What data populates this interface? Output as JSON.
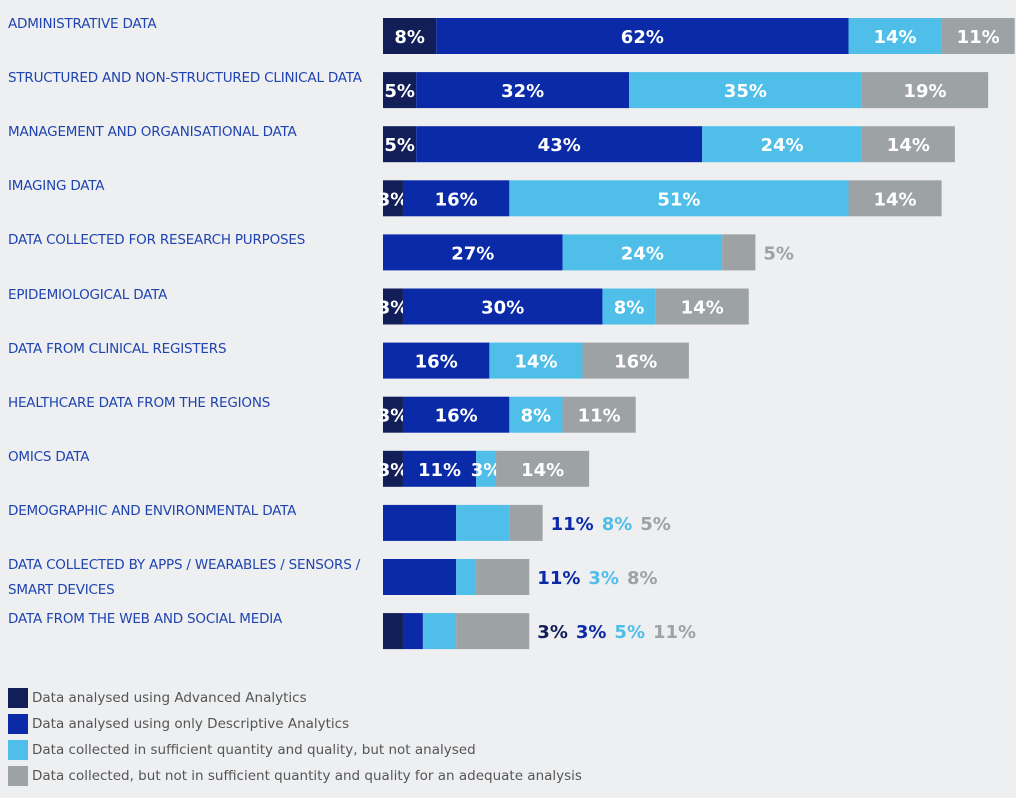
{
  "chart_data": {
    "type": "bar",
    "orientation": "horizontal",
    "stacked": true,
    "categories": [
      "ADMINISTRATIVE DATA",
      "STRUCTURED AND NON-STRUCTURED CLINICAL DATA",
      "MANAGEMENT AND ORGANISATIONAL DATA",
      "IMAGING DATA",
      "DATA COLLECTED FOR RESEARCH PURPOSES",
      "EPIDEMIOLOGICAL DATA",
      "DATA FROM CLINICAL REGISTERS",
      "HEALTHCARE DATA FROM THE REGIONS",
      "OMICS DATA",
      "DEMOGRAPHIC AND ENVIRONMENTAL DATA",
      "DATA COLLECTED BY APPS / WEARABLES / SENSORS / SMART DEVICES",
      "DATA FROM THE WEB AND SOCIAL MEDIA"
    ],
    "series": [
      {
        "name": "Data analysed using Advanced Analytics",
        "color": "#111e57",
        "values": [
          8,
          5,
          5,
          3,
          null,
          3,
          null,
          3,
          3,
          null,
          null,
          3
        ],
        "value_labels": [
          "8%",
          "5%",
          "5%",
          "3%",
          null,
          "3%",
          null,
          "3%",
          "3%",
          null,
          null,
          "3%"
        ]
      },
      {
        "name": "Data analysed using only Descriptive Analytics",
        "color": "#0a2aa8",
        "values": [
          62,
          32,
          43,
          16,
          27,
          30,
          16,
          16,
          11,
          11,
          11,
          3
        ],
        "value_labels": [
          "62%",
          "32%",
          "43%",
          "16%",
          "27%",
          "30%",
          "16%",
          "16%",
          "11%",
          "11%",
          "11%",
          "3%"
        ]
      },
      {
        "name": "Data collected in sufficient quantity and quality, but not analysed",
        "color": "#4fbee9",
        "values": [
          14,
          35,
          24,
          51,
          24,
          8,
          14,
          8,
          3,
          8,
          3,
          5
        ],
        "value_labels": [
          "14%",
          "35%",
          "24%",
          "51%",
          "24%",
          "8%",
          "14%",
          "8%",
          "3%",
          "8%",
          "3%",
          "5%"
        ]
      },
      {
        "name": "Data collected, but not in sufficient quantity and quality for an adequate analysis",
        "color": "#9da2a5",
        "values": [
          11,
          19,
          14,
          14,
          5,
          14,
          16,
          11,
          14,
          5,
          8,
          11
        ],
        "value_labels": [
          "11%",
          "19%",
          "14%",
          "14%",
          "5%",
          "14%",
          "16%",
          "11%",
          "14%",
          "5%",
          "8%",
          "11%"
        ]
      }
    ]
  }
}
